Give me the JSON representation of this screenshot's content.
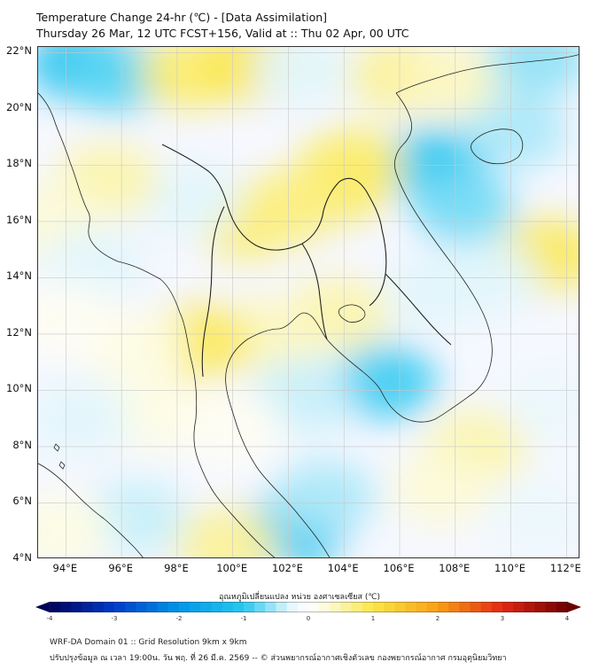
{
  "header": {
    "title_line1": "Temperature Change 24-hr (℃) - [Data Assimilation]",
    "title_line2": "Thursday 26 Mar, 12 UTC FCST+156, Valid at :: Thu 02 Apr, 00 UTC"
  },
  "map": {
    "lat_labels": [
      "22°N",
      "20°N",
      "18°N",
      "16°N",
      "14°N",
      "12°N",
      "10°N",
      "8°N",
      "6°N",
      "4°N"
    ],
    "lon_labels": [
      "94°E",
      "96°E",
      "98°E",
      "100°E",
      "102°E",
      "104°E",
      "106°E",
      "108°E",
      "110°E",
      "112°E"
    ],
    "extent": {
      "lon_min": 93,
      "lon_max": 112.5,
      "lat_min": 4,
      "lat_max": 22.2
    },
    "colors": {
      "gridline": "#c8c8c8",
      "coast": "#222222"
    },
    "field": [
      {
        "lon": 94.5,
        "lat": 21.6,
        "value": -1.1
      },
      {
        "lon": 95.8,
        "lat": 21.2,
        "value": -0.8
      },
      {
        "lon": 98.5,
        "lat": 21.3,
        "value": 0.8
      },
      {
        "lon": 100.8,
        "lat": 21.6,
        "value": 1.0
      },
      {
        "lon": 102.5,
        "lat": 21.4,
        "value": -0.3
      },
      {
        "lon": 106.0,
        "lat": 21.2,
        "value": 0.6
      },
      {
        "lon": 108.0,
        "lat": 21.0,
        "value": 0.4
      },
      {
        "lon": 111.0,
        "lat": 21.8,
        "value": -0.6
      },
      {
        "lon": 107.3,
        "lat": 18.0,
        "value": -1.0
      },
      {
        "lon": 108.3,
        "lat": 16.5,
        "value": -0.7
      },
      {
        "lon": 110.2,
        "lat": 19.2,
        "value": -0.5
      },
      {
        "lon": 103.8,
        "lat": 17.3,
        "value": 0.9
      },
      {
        "lon": 104.3,
        "lat": 18.0,
        "value": 0.8
      },
      {
        "lon": 100.5,
        "lat": 16.0,
        "value": 0.8
      },
      {
        "lon": 102.0,
        "lat": 16.5,
        "value": 0.7
      },
      {
        "lon": 98.5,
        "lat": 16.8,
        "value": -0.3
      },
      {
        "lon": 95.5,
        "lat": 17.5,
        "value": 0.5
      },
      {
        "lon": 93.6,
        "lat": 16.0,
        "value": 0.3
      },
      {
        "lon": 95.0,
        "lat": 14.5,
        "value": -0.3
      },
      {
        "lon": 111.3,
        "lat": 14.8,
        "value": 0.9
      },
      {
        "lon": 109.2,
        "lat": 14.0,
        "value": -0.3
      },
      {
        "lon": 107.2,
        "lat": 13.5,
        "value": -0.3
      },
      {
        "lon": 103.8,
        "lat": 12.7,
        "value": 0.5
      },
      {
        "lon": 101.2,
        "lat": 12.0,
        "value": 0.4
      },
      {
        "lon": 98.8,
        "lat": 11.7,
        "value": 0.9
      },
      {
        "lon": 96.5,
        "lat": 11.5,
        "value": 0.2
      },
      {
        "lon": 94.0,
        "lat": 12.5,
        "value": 0.1
      },
      {
        "lon": 105.5,
        "lat": 10.3,
        "value": -0.9
      },
      {
        "lon": 102.5,
        "lat": 9.8,
        "value": -0.4
      },
      {
        "lon": 97.2,
        "lat": 9.2,
        "value": 0.2
      },
      {
        "lon": 94.5,
        "lat": 9.0,
        "value": -0.3
      },
      {
        "lon": 100.0,
        "lat": 8.7,
        "value": 0.1
      },
      {
        "lon": 108.8,
        "lat": 8.0,
        "value": 0.5
      },
      {
        "lon": 111.5,
        "lat": 9.5,
        "value": -0.2
      },
      {
        "lon": 107.5,
        "lat": 6.5,
        "value": 0.3
      },
      {
        "lon": 102.2,
        "lat": 5.0,
        "value": -1.0
      },
      {
        "lon": 103.3,
        "lat": 6.2,
        "value": -0.5
      },
      {
        "lon": 99.8,
        "lat": 4.5,
        "value": 0.6
      },
      {
        "lon": 96.5,
        "lat": 5.5,
        "value": -0.4
      },
      {
        "lon": 93.8,
        "lat": 5.0,
        "value": 0.2
      },
      {
        "lon": 111.0,
        "lat": 5.5,
        "value": -0.2
      }
    ]
  },
  "colorbar": {
    "title": "อุณหภูมิเปลี่ยนแปลง หน่วย องศาเซลเซียส (℃)",
    "tick_labels": [
      "-4",
      "-3",
      "-2",
      "-1",
      "0",
      "1",
      "2",
      "3",
      "4"
    ],
    "range": [
      -4,
      4
    ]
  },
  "footer": {
    "line1": "WRF-DA Domain 01 :: Grid Resolution 9km x 9km",
    "line2": "ปรับปรุงข้อมูล ณ เวลา 19:00น. วัน พฤ. ที่ 26 มี.ค. 2569 -- © ส่วนพยากรณ์อากาศเชิงตัวเลข กองพยากรณ์อากาศ กรมอุตุนิยมวิทยา"
  }
}
